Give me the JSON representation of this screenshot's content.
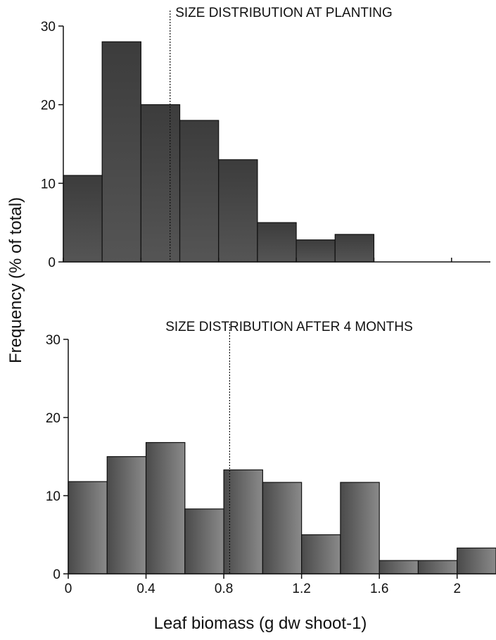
{
  "ylabel": "Frequency (% of total)",
  "xlabel": "Leaf biomass (g dw shoot-1)",
  "chart_data": [
    {
      "type": "bar",
      "title": "SIZE DISTRIBUTION AT PLANTING",
      "bin_edges": [
        0,
        0.2,
        0.4,
        0.6,
        0.8,
        1.0,
        1.2,
        1.4,
        1.6
      ],
      "values": [
        11,
        28,
        20,
        18,
        13,
        5,
        2.8,
        3.5
      ],
      "mean_line": 0.55,
      "xlim": [
        0,
        2.2
      ],
      "ylim": [
        0,
        30
      ],
      "yticks": [
        0,
        10,
        20,
        30
      ],
      "xticks": [
        0,
        0.4,
        0.8,
        1.2,
        1.6,
        2
      ],
      "xtick_labels": [],
      "grid": false,
      "bar_color": "#4a4a4a"
    },
    {
      "type": "bar",
      "title": "SIZE DISTRIBUTION AFTER 4 MONTHS",
      "bin_edges": [
        0,
        0.2,
        0.4,
        0.6,
        0.8,
        1.0,
        1.2,
        1.4,
        1.6,
        1.8,
        2.0,
        2.2
      ],
      "values": [
        11.8,
        15,
        16.8,
        8.3,
        13.3,
        11.7,
        5,
        11.7,
        1.7,
        1.7,
        3.3
      ],
      "mean_line": 0.83,
      "xlim": [
        0,
        2.2
      ],
      "ylim": [
        0,
        30
      ],
      "yticks": [
        0,
        10,
        20,
        30
      ],
      "xticks": [
        0,
        0.4,
        0.8,
        1.2,
        1.6,
        2
      ],
      "xtick_labels": [
        "0",
        "0.4",
        "0.8",
        "1.2",
        "1.6",
        "2"
      ],
      "grid": false,
      "bar_color": "#555555"
    }
  ]
}
